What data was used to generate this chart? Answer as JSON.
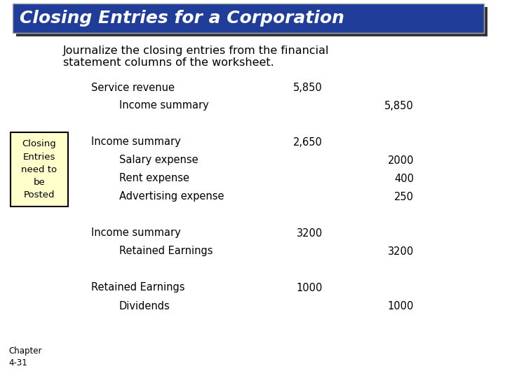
{
  "title": "Closing Entries for a Corporation",
  "title_bg": "#1f3d99",
  "title_shadow": "#333333",
  "title_color": "#ffffff",
  "subtitle_line1": "Journalize the closing entries from the financial",
  "subtitle_line2": "statement columns of the worksheet.",
  "bg_color": "#ffffff",
  "entries": [
    {
      "account": "Service revenue",
      "indent": false,
      "debit": "5,850",
      "credit": ""
    },
    {
      "account": "Income summary",
      "indent": true,
      "debit": "",
      "credit": "5,850"
    },
    {
      "account": "",
      "indent": false,
      "debit": "",
      "credit": ""
    },
    {
      "account": "Income summary",
      "indent": false,
      "debit": "2,650",
      "credit": ""
    },
    {
      "account": "Salary expense",
      "indent": true,
      "debit": "",
      "credit": "2000"
    },
    {
      "account": "Rent expense",
      "indent": true,
      "debit": "",
      "credit": "400"
    },
    {
      "account": "Advertising expense",
      "indent": true,
      "debit": "",
      "credit": "250"
    },
    {
      "account": "",
      "indent": false,
      "debit": "",
      "credit": ""
    },
    {
      "account": "Income summary",
      "indent": false,
      "debit": "3200",
      "credit": ""
    },
    {
      "account": "Retained Earnings",
      "indent": true,
      "debit": "",
      "credit": "3200"
    },
    {
      "account": "",
      "indent": false,
      "debit": "",
      "credit": ""
    },
    {
      "account": "Retained Earnings",
      "indent": false,
      "debit": "1000",
      "credit": ""
    },
    {
      "account": "Dividends",
      "indent": true,
      "debit": "",
      "credit": "1000"
    }
  ],
  "sidebar_text": "Closing\nEntries\nneed to\nbe\nPosted",
  "sidebar_bg": "#ffffcc",
  "sidebar_border": "#000000",
  "chapter_text": "Chapter\n4-31"
}
